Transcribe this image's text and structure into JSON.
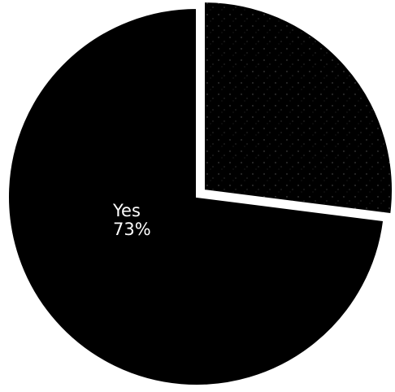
{
  "chart_data": {
    "type": "pie",
    "slices": [
      {
        "label": "Yes",
        "value": 73,
        "value_label": "73%",
        "color": "#000000"
      },
      {
        "label": "",
        "value": 27,
        "value_label": "",
        "color": "#000000",
        "exploded": true,
        "texture": "speckled"
      }
    ],
    "title": "",
    "legend": false
  }
}
